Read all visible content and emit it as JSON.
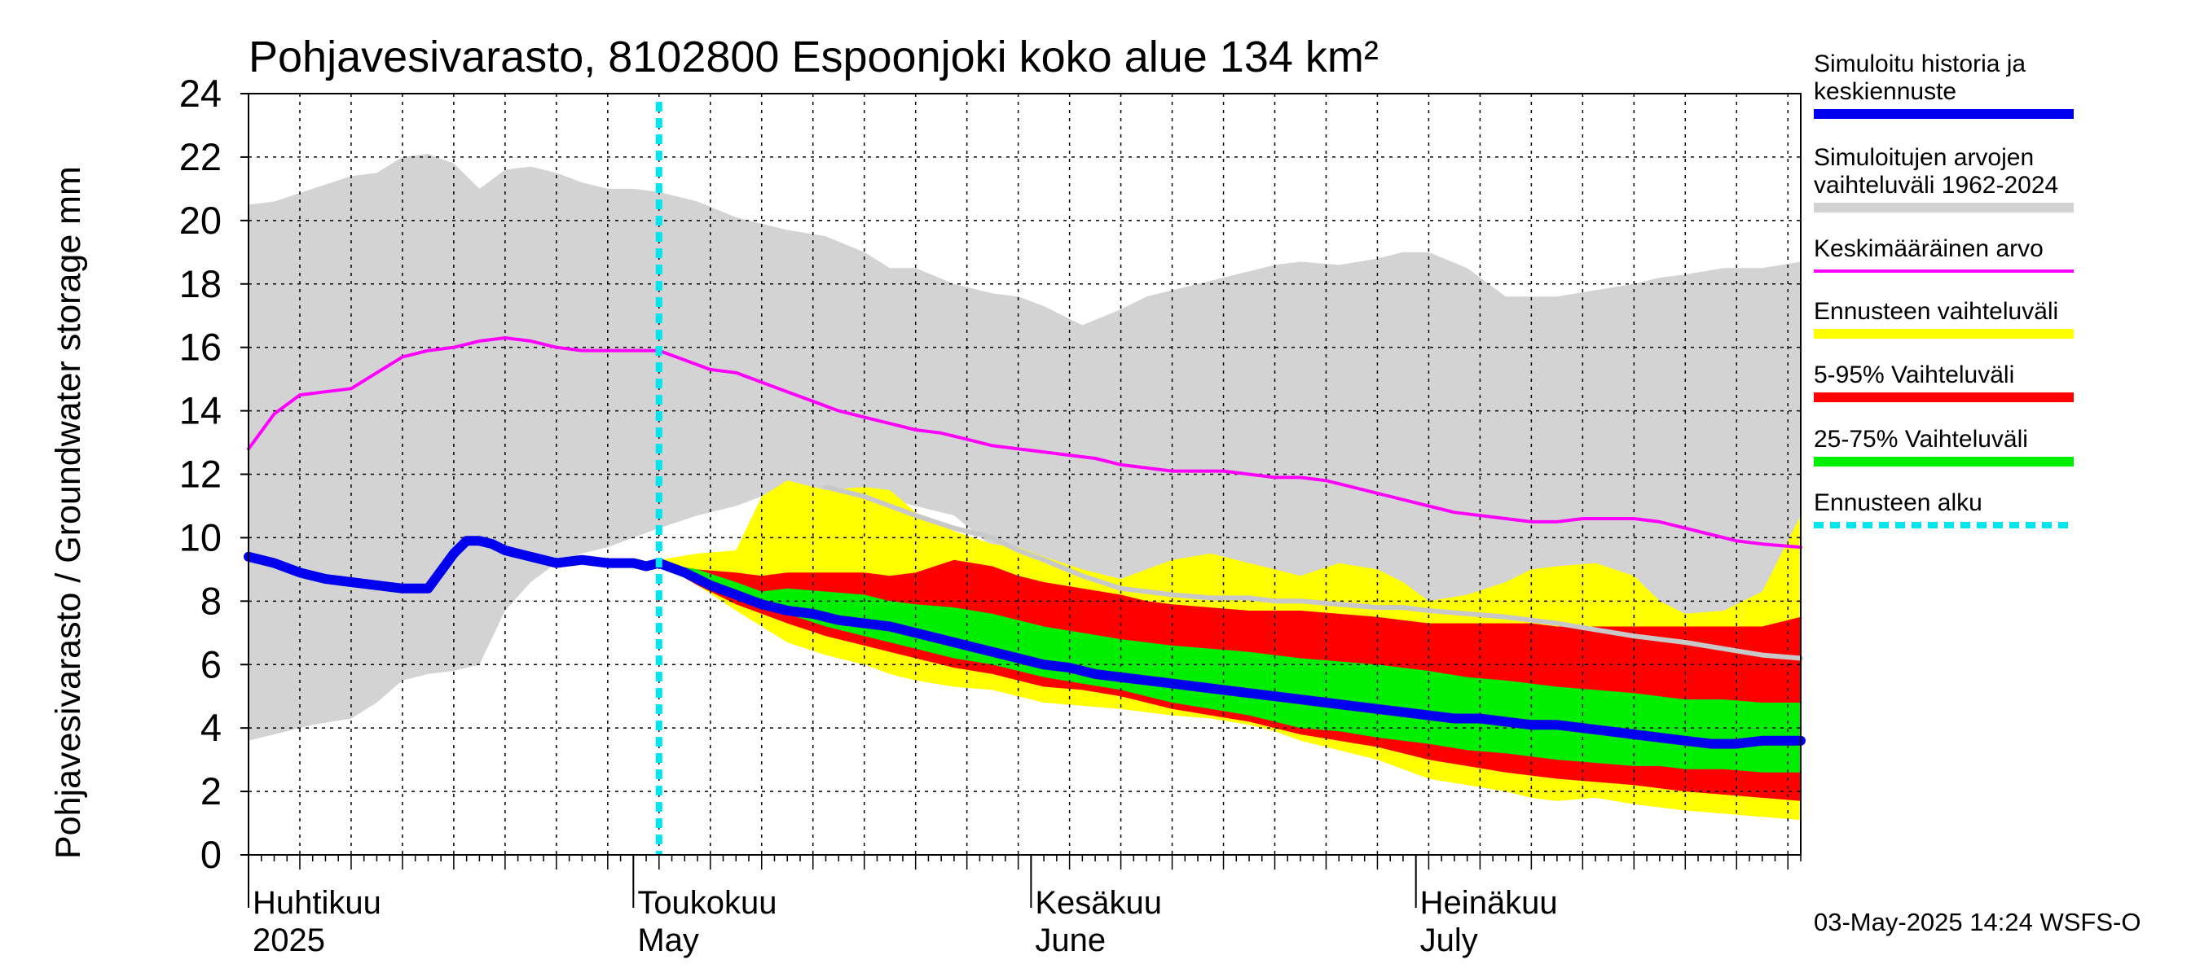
{
  "chart_data": {
    "type": "area",
    "title": "Pohjavesivarasto, 8102800 Espoonjoki koko alue 134 km²",
    "ylabel": "Pohjavesivarasto / Groundwater storage   mm",
    "ylim": [
      0,
      24
    ],
    "yticks": [
      0,
      2,
      4,
      6,
      8,
      10,
      12,
      14,
      16,
      18,
      20,
      22,
      24
    ],
    "x_days_range": [
      0,
      121
    ],
    "forecast_start_day": 32,
    "months": [
      {
        "fi": "Huhtikuu",
        "en": "2025",
        "day": 0
      },
      {
        "fi": "Toukokuu",
        "en": "May",
        "day": 30
      },
      {
        "fi": "Kesäkuu",
        "en": "June",
        "day": 61
      },
      {
        "fi": "Heinäkuu",
        "en": "July",
        "day": 91
      }
    ],
    "series": [
      {
        "name": "Simuloitujen arvojen vaihteluväli 1962-2024",
        "color": "#d3d3d3",
        "kind": "band",
        "x": [
          0,
          2,
          5,
          8,
          10,
          12,
          14,
          16,
          18,
          20,
          22,
          24,
          26,
          28,
          30,
          32,
          35,
          38,
          40,
          42,
          45,
          48,
          50,
          52,
          55,
          58,
          60,
          62,
          65,
          68,
          70,
          72,
          75,
          78,
          80,
          82,
          85,
          88,
          90,
          92,
          95,
          98,
          100,
          102,
          105,
          108,
          110,
          112,
          115,
          118,
          121
        ],
        "upper": [
          20.5,
          20.6,
          21.0,
          21.4,
          21.5,
          22.0,
          22.1,
          21.8,
          21.0,
          21.6,
          21.7,
          21.5,
          21.2,
          21.0,
          21.0,
          20.9,
          20.6,
          20.1,
          19.9,
          19.7,
          19.5,
          19.0,
          18.5,
          18.5,
          18.0,
          17.7,
          17.6,
          17.3,
          16.7,
          17.2,
          17.6,
          17.8,
          18.1,
          18.4,
          18.6,
          18.7,
          18.6,
          18.8,
          19.0,
          19.0,
          18.5,
          17.6,
          17.6,
          17.6,
          17.8,
          18.0,
          18.2,
          18.3,
          18.5,
          18.5,
          18.7
        ],
        "lower": [
          3.6,
          3.8,
          4.1,
          4.3,
          4.8,
          5.5,
          5.7,
          5.8,
          6.0,
          7.7,
          8.6,
          9.2,
          9.5,
          9.7,
          10.0,
          10.3,
          10.7,
          11.0,
          11.3,
          11.5,
          11.3,
          11.4,
          11.2,
          11.0,
          10.7,
          9.7,
          9.4,
          9.3,
          8.5,
          8.3,
          8.2,
          8.0,
          8.1,
          8.2,
          8.1,
          8.0,
          8.1,
          8.2,
          8.0,
          7.8,
          7.5,
          7.3,
          6.3,
          6.0,
          6.2,
          6.6,
          6.9,
          7.1,
          7.3,
          7.5,
          7.8
        ]
      },
      {
        "name": "Ennusteen vaihteluväli",
        "color": "#ffff00",
        "kind": "band",
        "x": [
          32,
          35,
          38,
          40,
          42,
          45,
          48,
          50,
          52,
          55,
          58,
          60,
          62,
          65,
          68,
          70,
          72,
          75,
          78,
          80,
          82,
          85,
          88,
          90,
          92,
          95,
          98,
          100,
          102,
          105,
          108,
          110,
          112,
          115,
          118,
          121
        ],
        "upper": [
          9.3,
          9.5,
          9.6,
          11.3,
          11.8,
          11.5,
          11.6,
          11.5,
          10.8,
          10.2,
          9.8,
          9.7,
          9.4,
          9.0,
          8.7,
          9.0,
          9.3,
          9.5,
          9.2,
          9.0,
          8.8,
          9.2,
          9.0,
          8.6,
          8.0,
          8.2,
          8.6,
          9.0,
          9.1,
          9.2,
          8.8,
          8.0,
          7.6,
          7.7,
          8.3,
          10.7
        ],
        "lower": [
          9.2,
          8.5,
          7.7,
          7.2,
          6.7,
          6.3,
          6.0,
          5.7,
          5.5,
          5.3,
          5.2,
          5.0,
          4.8,
          4.7,
          4.6,
          4.5,
          4.4,
          4.3,
          4.1,
          3.9,
          3.6,
          3.3,
          3.0,
          2.7,
          2.4,
          2.2,
          2.0,
          1.8,
          1.7,
          1.8,
          1.6,
          1.5,
          1.4,
          1.3,
          1.2,
          1.1
        ]
      },
      {
        "name": "5-95% Vaihteluväli",
        "color": "#ff0000",
        "kind": "band",
        "x": [
          32,
          35,
          38,
          40,
          42,
          45,
          48,
          50,
          52,
          55,
          58,
          60,
          62,
          65,
          68,
          70,
          72,
          75,
          78,
          80,
          82,
          85,
          88,
          90,
          92,
          95,
          98,
          100,
          102,
          105,
          108,
          110,
          112,
          115,
          118,
          121
        ],
        "upper": [
          9.2,
          9.0,
          8.9,
          8.8,
          8.9,
          8.9,
          8.9,
          8.8,
          8.9,
          9.3,
          9.1,
          8.8,
          8.6,
          8.4,
          8.2,
          8.0,
          7.9,
          7.8,
          7.7,
          7.7,
          7.7,
          7.6,
          7.5,
          7.4,
          7.3,
          7.3,
          7.3,
          7.3,
          7.2,
          7.2,
          7.2,
          7.2,
          7.2,
          7.2,
          7.2,
          7.5
        ],
        "lower": [
          9.2,
          8.5,
          7.9,
          7.6,
          7.3,
          6.9,
          6.6,
          6.4,
          6.2,
          5.9,
          5.7,
          5.5,
          5.3,
          5.2,
          5.0,
          4.8,
          4.6,
          4.4,
          4.2,
          4.0,
          3.8,
          3.6,
          3.4,
          3.2,
          3.0,
          2.8,
          2.6,
          2.5,
          2.4,
          2.3,
          2.2,
          2.1,
          2.0,
          1.9,
          1.8,
          1.7
        ]
      },
      {
        "name": "25-75% Vaihteluväli",
        "color": "#00ee00",
        "kind": "band",
        "x": [
          32,
          35,
          38,
          40,
          42,
          45,
          48,
          50,
          52,
          55,
          58,
          60,
          62,
          65,
          68,
          70,
          72,
          75,
          78,
          80,
          82,
          85,
          88,
          90,
          92,
          95,
          98,
          100,
          102,
          105,
          108,
          110,
          112,
          115,
          118,
          121
        ],
        "upper": [
          9.2,
          9.0,
          8.6,
          8.3,
          8.4,
          8.3,
          8.2,
          8.0,
          7.9,
          7.8,
          7.6,
          7.4,
          7.2,
          7.0,
          6.8,
          6.7,
          6.6,
          6.5,
          6.4,
          6.3,
          6.2,
          6.1,
          6.0,
          5.9,
          5.8,
          5.6,
          5.5,
          5.4,
          5.3,
          5.2,
          5.1,
          5.0,
          4.9,
          4.9,
          4.8,
          4.8
        ],
        "lower": [
          9.2,
          8.8,
          8.3,
          8.0,
          7.6,
          7.2,
          6.9,
          6.7,
          6.5,
          6.2,
          6.0,
          5.8,
          5.6,
          5.4,
          5.2,
          5.0,
          4.8,
          4.6,
          4.4,
          4.2,
          4.0,
          3.9,
          3.7,
          3.6,
          3.5,
          3.3,
          3.2,
          3.1,
          3.0,
          2.9,
          2.8,
          2.8,
          2.7,
          2.7,
          2.6,
          2.6
        ]
      },
      {
        "name": "Keskimääräinen arvo",
        "color": "#ff00ff",
        "kind": "line",
        "width": 4,
        "x": [
          0,
          2,
          4,
          6,
          8,
          10,
          12,
          14,
          16,
          18,
          20,
          22,
          24,
          26,
          28,
          30,
          32,
          34,
          36,
          38,
          40,
          42,
          44,
          46,
          48,
          50,
          52,
          54,
          56,
          58,
          60,
          62,
          64,
          66,
          68,
          70,
          72,
          74,
          76,
          78,
          80,
          82,
          84,
          86,
          88,
          90,
          92,
          94,
          96,
          98,
          100,
          102,
          104,
          106,
          108,
          110,
          112,
          114,
          116,
          118,
          121
        ],
        "values": [
          12.8,
          13.9,
          14.5,
          14.6,
          14.7,
          15.2,
          15.7,
          15.9,
          16.0,
          16.2,
          16.3,
          16.2,
          16.0,
          15.9,
          15.9,
          15.9,
          15.9,
          15.6,
          15.3,
          15.2,
          14.9,
          14.6,
          14.3,
          14.0,
          13.8,
          13.6,
          13.4,
          13.3,
          13.1,
          12.9,
          12.8,
          12.7,
          12.6,
          12.5,
          12.3,
          12.2,
          12.1,
          12.1,
          12.1,
          12.0,
          11.9,
          11.9,
          11.8,
          11.6,
          11.4,
          11.2,
          11.0,
          10.8,
          10.7,
          10.6,
          10.5,
          10.5,
          10.6,
          10.6,
          10.6,
          10.5,
          10.3,
          10.1,
          9.9,
          9.8,
          9.7
        ]
      },
      {
        "name": "Simulated upper envelope (grey line)",
        "color": "#c8c8c8",
        "kind": "line",
        "width": 6,
        "no_legend": true,
        "x": [
          45,
          48,
          50,
          52,
          55,
          58,
          60,
          62,
          65,
          68,
          70,
          72,
          75,
          78,
          80,
          82,
          85,
          88,
          90,
          92,
          95,
          98,
          100,
          102,
          105,
          108,
          110,
          112,
          115,
          118,
          121
        ],
        "values": [
          11.6,
          11.3,
          11.0,
          10.7,
          10.3,
          10.0,
          9.6,
          9.3,
          8.8,
          8.4,
          8.3,
          8.2,
          8.1,
          8.1,
          8.0,
          8.0,
          7.9,
          7.8,
          7.8,
          7.7,
          7.6,
          7.5,
          7.4,
          7.3,
          7.1,
          6.9,
          6.8,
          6.7,
          6.5,
          6.3,
          6.2
        ]
      },
      {
        "name": "Simuloitu historia ja keskiennuste",
        "color": "#0000ee",
        "kind": "line",
        "width": 12,
        "x": [
          0,
          2,
          4,
          6,
          8,
          10,
          12,
          14,
          16,
          17,
          18,
          19,
          20,
          21,
          22,
          24,
          26,
          28,
          30,
          31,
          32,
          34,
          36,
          38,
          40,
          42,
          44,
          46,
          48,
          50,
          52,
          54,
          56,
          58,
          60,
          62,
          64,
          66,
          68,
          70,
          72,
          74,
          76,
          78,
          80,
          82,
          84,
          86,
          88,
          90,
          92,
          94,
          96,
          98,
          100,
          102,
          104,
          106,
          108,
          110,
          112,
          114,
          116,
          118,
          121
        ],
        "values": [
          9.4,
          9.2,
          8.9,
          8.7,
          8.6,
          8.5,
          8.4,
          8.4,
          9.5,
          9.9,
          9.9,
          9.8,
          9.6,
          9.5,
          9.4,
          9.2,
          9.3,
          9.2,
          9.2,
          9.1,
          9.2,
          8.9,
          8.5,
          8.2,
          7.9,
          7.7,
          7.6,
          7.4,
          7.3,
          7.2,
          7.0,
          6.8,
          6.6,
          6.4,
          6.2,
          6.0,
          5.9,
          5.7,
          5.6,
          5.5,
          5.4,
          5.3,
          5.2,
          5.1,
          5.0,
          4.9,
          4.8,
          4.7,
          4.6,
          4.5,
          4.4,
          4.3,
          4.3,
          4.2,
          4.1,
          4.1,
          4.0,
          3.9,
          3.8,
          3.7,
          3.6,
          3.5,
          3.5,
          3.6,
          3.6
        ]
      }
    ],
    "legend_entries": [
      {
        "label": "Simuloitu historia ja keskiennuste",
        "color": "#0000ee",
        "style": "thick"
      },
      {
        "label": "Simuloitujen arvojen vaihteluväli 1962-2024",
        "color": "#d3d3d3",
        "style": "thick"
      },
      {
        "label": "Keskimääräinen arvo",
        "color": "#ff00ff",
        "style": "thin"
      },
      {
        "label": "Ennusteen vaihteluväli",
        "color": "#ffff00",
        "style": "thick"
      },
      {
        "label": "5-95% Vaihteluväli",
        "color": "#ff0000",
        "style": "thick"
      },
      {
        "label": "25-75% Vaihteluväli",
        "color": "#00ee00",
        "style": "thick"
      },
      {
        "label": "Ennusteen alku",
        "color": "#00e5ee",
        "style": "dotted"
      }
    ],
    "legend_placement": "right",
    "footer": "03-May-2025 14:24 WSFS-O"
  }
}
